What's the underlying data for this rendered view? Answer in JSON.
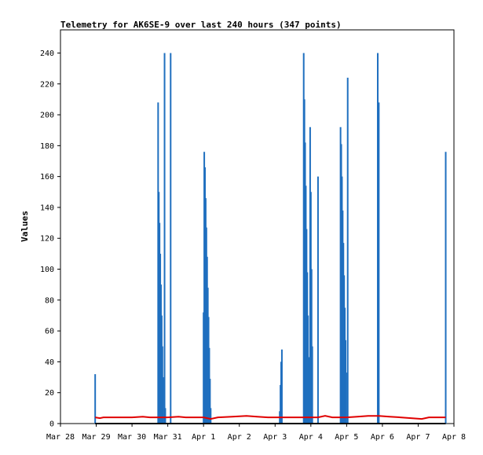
{
  "chart_data": {
    "type": "line",
    "title": "Telemetry for AK6SE-9 over last 240 hours (347 points)",
    "xlabel": "",
    "ylabel": "Values",
    "x_tick_labels": [
      "Mar 28",
      "Mar 29",
      "Mar 30",
      "Mar 31",
      "Apr 1",
      "Apr 2",
      "Apr 3",
      "Apr 4",
      "Apr 5",
      "Apr 6",
      "Apr 7",
      "Apr 8"
    ],
    "xlim": [
      0,
      11
    ],
    "ylim": [
      0,
      255
    ],
    "y_ticks": [
      0,
      20,
      40,
      60,
      80,
      100,
      120,
      140,
      160,
      180,
      200,
      220,
      240
    ],
    "grid": false,
    "legend": false,
    "series": [
      {
        "color": "#1f6fbf",
        "style": "spikes",
        "values": [
          [
            0.97,
            32
          ],
          [
            2.73,
            208
          ],
          [
            2.75,
            150
          ],
          [
            2.77,
            130
          ],
          [
            2.79,
            110
          ],
          [
            2.81,
            90
          ],
          [
            2.83,
            70
          ],
          [
            2.85,
            50
          ],
          [
            2.87,
            30
          ],
          [
            2.91,
            240
          ],
          [
            2.93,
            10
          ],
          [
            3.08,
            240
          ],
          [
            4.0,
            72
          ],
          [
            4.02,
            176
          ],
          [
            4.04,
            166
          ],
          [
            4.06,
            146
          ],
          [
            4.08,
            127
          ],
          [
            4.1,
            108
          ],
          [
            4.12,
            88
          ],
          [
            4.14,
            69
          ],
          [
            4.16,
            49
          ],
          [
            4.18,
            29
          ],
          [
            4.2,
            10
          ],
          [
            6.13,
            8
          ],
          [
            6.15,
            25
          ],
          [
            6.17,
            40
          ],
          [
            6.19,
            48
          ],
          [
            6.8,
            240
          ],
          [
            6.82,
            210
          ],
          [
            6.84,
            182
          ],
          [
            6.86,
            154
          ],
          [
            6.88,
            126
          ],
          [
            6.9,
            98
          ],
          [
            6.92,
            70
          ],
          [
            6.94,
            43
          ],
          [
            6.98,
            192
          ],
          [
            7.0,
            150
          ],
          [
            7.02,
            100
          ],
          [
            7.04,
            50
          ],
          [
            7.2,
            160
          ],
          [
            7.83,
            192
          ],
          [
            7.85,
            181
          ],
          [
            7.87,
            160
          ],
          [
            7.89,
            138
          ],
          [
            7.91,
            117
          ],
          [
            7.93,
            96
          ],
          [
            7.95,
            75
          ],
          [
            7.97,
            54
          ],
          [
            7.99,
            33
          ],
          [
            8.03,
            224
          ],
          [
            8.87,
            240
          ],
          [
            8.9,
            208
          ],
          [
            10.77,
            176
          ]
        ]
      },
      {
        "color": "#e00000",
        "style": "line",
        "values": [
          [
            0.97,
            4
          ],
          [
            1.1,
            3.5
          ],
          [
            1.2,
            4
          ],
          [
            1.5,
            4
          ],
          [
            2.0,
            4
          ],
          [
            2.3,
            4.5
          ],
          [
            2.5,
            4
          ],
          [
            3.0,
            4
          ],
          [
            3.3,
            4.5
          ],
          [
            3.5,
            4
          ],
          [
            4.0,
            4
          ],
          [
            4.2,
            3
          ],
          [
            4.4,
            4
          ],
          [
            4.8,
            4.5
          ],
          [
            5.2,
            5
          ],
          [
            5.5,
            4.5
          ],
          [
            5.8,
            4
          ],
          [
            6.0,
            4
          ],
          [
            6.5,
            4
          ],
          [
            7.0,
            4
          ],
          [
            7.2,
            4
          ],
          [
            7.4,
            5
          ],
          [
            7.6,
            4
          ],
          [
            8.0,
            4
          ],
          [
            8.3,
            4.5
          ],
          [
            8.6,
            5
          ],
          [
            8.9,
            5
          ],
          [
            9.2,
            4.5
          ],
          [
            9.5,
            4
          ],
          [
            9.8,
            3.5
          ],
          [
            10.1,
            3
          ],
          [
            10.3,
            4
          ],
          [
            10.77,
            4
          ]
        ]
      },
      {
        "color": "#000000",
        "style": "line",
        "values": [
          [
            0.97,
            0
          ],
          [
            10.77,
            0
          ]
        ]
      }
    ]
  }
}
